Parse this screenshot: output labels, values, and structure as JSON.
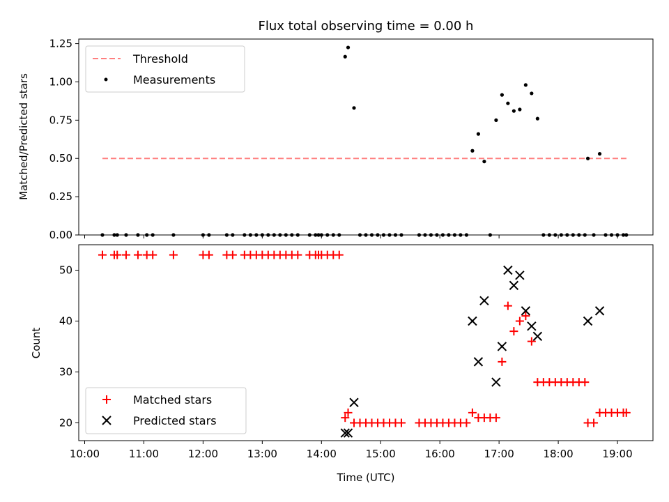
{
  "figure": {
    "title": "Flux total observing time = 0.00 h"
  },
  "colors": {
    "threshold": "#ff7f7f",
    "measurement": "#000000",
    "matched": "#ff0000",
    "predicted": "#000000"
  },
  "chart_data": [
    {
      "type": "scatter",
      "xlabel": "",
      "ylabel": "Matched/Predicted stars",
      "ylim": [
        0,
        1.28
      ],
      "yticks": [
        0.0,
        0.25,
        0.5,
        0.75,
        1.0,
        1.25
      ],
      "ytick_labels": [
        "0.00",
        "0.25",
        "0.50",
        "0.75",
        "1.00",
        "1.25"
      ],
      "legend_position": "top-left",
      "grid": false,
      "series": [
        {
          "name": "Threshold",
          "kind": "dashed-line",
          "x": [
            "10:18",
            "19:12"
          ],
          "y": [
            0.5,
            0.5
          ]
        },
        {
          "name": "Measurements",
          "kind": "dot",
          "x": [
            "10:18",
            "10:30",
            "10:33",
            "10:42",
            "10:54",
            "11:03",
            "11:09",
            "11:30",
            "12:00",
            "12:06",
            "12:24",
            "12:30",
            "12:42",
            "12:48",
            "12:54",
            "13:00",
            "13:06",
            "13:12",
            "13:18",
            "13:24",
            "13:30",
            "13:36",
            "13:48",
            "13:54",
            "13:57",
            "14:00",
            "14:06",
            "14:12",
            "14:18",
            "14:24",
            "14:27",
            "14:33",
            "14:39",
            "14:45",
            "14:51",
            "14:57",
            "15:03",
            "15:09",
            "15:15",
            "15:21",
            "15:39",
            "15:45",
            "15:51",
            "15:57",
            "16:03",
            "16:09",
            "16:15",
            "16:21",
            "16:27",
            "16:33",
            "16:39",
            "16:45",
            "16:51",
            "16:57",
            "17:03",
            "17:09",
            "17:15",
            "17:21",
            "17:27",
            "17:33",
            "17:39",
            "17:45",
            "17:51",
            "17:57",
            "18:03",
            "18:09",
            "18:15",
            "18:21",
            "18:27",
            "18:30",
            "18:36",
            "18:42",
            "18:48",
            "18:54",
            "19:00",
            "19:06",
            "19:09"
          ],
          "y": [
            0,
            0,
            0,
            0,
            0,
            0,
            0,
            0,
            0,
            0,
            0,
            0,
            0,
            0,
            0,
            0,
            0,
            0,
            0,
            0,
            0,
            0,
            0,
            0,
            0,
            0,
            0,
            0,
            0,
            1.165,
            1.225,
            0.83,
            0,
            0,
            0,
            0,
            0,
            0,
            0,
            0,
            0,
            0,
            0,
            0,
            0,
            0,
            0,
            0,
            0,
            0.55,
            0.66,
            0.48,
            0,
            0.75,
            0.915,
            0.86,
            0.81,
            0.82,
            0.98,
            0.925,
            0.76,
            0,
            0,
            0,
            0,
            0,
            0,
            0,
            0,
            0.5,
            0,
            0.53,
            0,
            0,
            0,
            0,
            0
          ]
        }
      ],
      "x_for_zero_only_note": ""
    },
    {
      "type": "scatter",
      "xlabel": "Time (UTC)",
      "ylabel": "Count",
      "ylim": [
        16.5,
        55
      ],
      "yticks": [
        20,
        30,
        40,
        50
      ],
      "ytick_labels": [
        "20",
        "30",
        "40",
        "50"
      ],
      "xlim": [
        "09:54",
        "19:36"
      ],
      "xticks": [
        "10:00",
        "11:00",
        "12:00",
        "13:00",
        "14:00",
        "15:00",
        "16:00",
        "17:00",
        "18:00",
        "19:00"
      ],
      "legend_position": "bottom-left",
      "grid": false,
      "series": [
        {
          "name": "Matched stars",
          "marker": "+",
          "x": [
            "10:18",
            "10:30",
            "10:33",
            "10:42",
            "10:54",
            "11:03",
            "11:09",
            "11:30",
            "12:00",
            "12:06",
            "12:24",
            "12:30",
            "12:42",
            "12:48",
            "12:54",
            "13:00",
            "13:06",
            "13:12",
            "13:18",
            "13:24",
            "13:30",
            "13:36",
            "13:48",
            "13:54",
            "13:57",
            "14:00",
            "14:06",
            "14:12",
            "14:18",
            "14:24",
            "14:27",
            "14:33",
            "14:39",
            "14:45",
            "14:51",
            "14:57",
            "15:03",
            "15:09",
            "15:15",
            "15:21",
            "15:39",
            "15:45",
            "15:51",
            "15:57",
            "16:03",
            "16:09",
            "16:15",
            "16:21",
            "16:27",
            "16:33",
            "16:39",
            "16:45",
            "16:51",
            "16:57",
            "17:03",
            "17:09",
            "17:15",
            "17:21",
            "17:27",
            "17:33",
            "17:39",
            "17:45",
            "17:51",
            "17:57",
            "18:03",
            "18:09",
            "18:15",
            "18:21",
            "18:27",
            "18:30",
            "18:36",
            "18:42",
            "18:48",
            "18:54",
            "19:00",
            "19:06",
            "19:09"
          ],
          "y": [
            53,
            53,
            53,
            53,
            53,
            53,
            53,
            53,
            53,
            53,
            53,
            53,
            53,
            53,
            53,
            53,
            53,
            53,
            53,
            53,
            53,
            53,
            53,
            53,
            53,
            53,
            53,
            53,
            53,
            21,
            22,
            20,
            20,
            20,
            20,
            20,
            20,
            20,
            20,
            20,
            20,
            20,
            20,
            20,
            20,
            20,
            20,
            20,
            20,
            22,
            21,
            21,
            21,
            21,
            32,
            43,
            38,
            40,
            41,
            36,
            28,
            28,
            28,
            28,
            28,
            28,
            28,
            28,
            28,
            20,
            20,
            22,
            22,
            22,
            22,
            22,
            22
          ]
        },
        {
          "name": "Predicted stars",
          "marker": "x",
          "x": [
            "14:24",
            "14:27",
            "14:33",
            "16:33",
            "16:39",
            "16:45",
            "16:57",
            "17:03",
            "17:09",
            "17:15",
            "17:21",
            "17:27",
            "17:33",
            "17:39",
            "18:30",
            "18:42"
          ],
          "y": [
            18,
            18,
            24,
            40,
            32,
            44,
            28,
            35,
            50,
            47,
            49,
            42,
            39,
            37,
            40,
            42
          ]
        }
      ]
    }
  ]
}
